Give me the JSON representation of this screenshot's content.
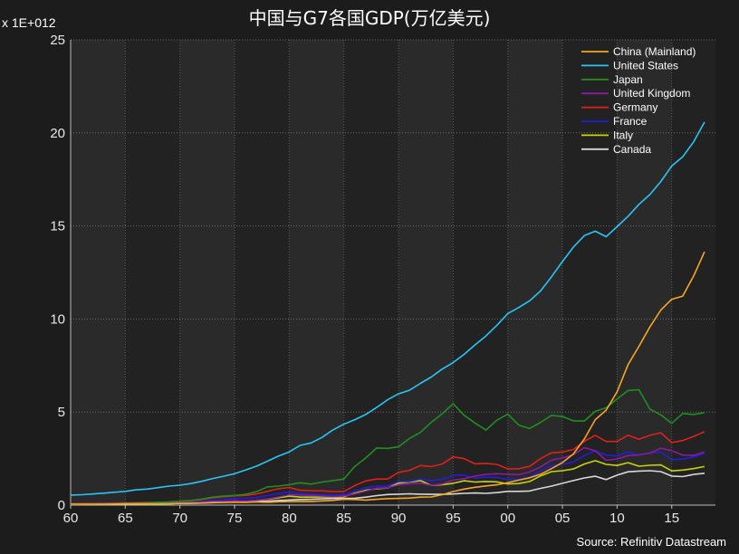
{
  "chart_data": {
    "type": "line",
    "title": "中国与G7各国GDP(万亿美元)",
    "unit_label": "x 1E+012",
    "source": "Source: Refinitiv Datastream",
    "xlabel": "",
    "ylabel": "",
    "xlim": [
      1960,
      2019
    ],
    "ylim": [
      0,
      25
    ],
    "yticks": [
      0,
      5,
      10,
      15,
      20,
      25
    ],
    "xticks": [
      1960,
      1965,
      1970,
      1975,
      1980,
      1985,
      1990,
      1995,
      2000,
      2005,
      2010,
      2015
    ],
    "xtick_labels": [
      "60",
      "65",
      "70",
      "75",
      "80",
      "85",
      "90",
      "95",
      "00",
      "05",
      "10",
      "15"
    ],
    "grid": true,
    "legend_position": "top-right",
    "x": [
      1960,
      1961,
      1962,
      1963,
      1964,
      1965,
      1966,
      1967,
      1968,
      1969,
      1970,
      1971,
      1972,
      1973,
      1974,
      1975,
      1976,
      1977,
      1978,
      1979,
      1980,
      1981,
      1982,
      1983,
      1984,
      1985,
      1986,
      1987,
      1988,
      1989,
      1990,
      1991,
      1992,
      1993,
      1994,
      1995,
      1996,
      1997,
      1998,
      1999,
      2000,
      2001,
      2002,
      2003,
      2004,
      2005,
      2006,
      2007,
      2008,
      2009,
      2010,
      2011,
      2012,
      2013,
      2014,
      2015,
      2016,
      2017,
      2018
    ],
    "series": [
      {
        "name": "China (Mainland)",
        "color": "#f5a623",
        "values": [
          0.06,
          0.05,
          0.05,
          0.05,
          0.06,
          0.07,
          0.08,
          0.07,
          0.07,
          0.08,
          0.09,
          0.1,
          0.11,
          0.14,
          0.14,
          0.16,
          0.15,
          0.17,
          0.15,
          0.18,
          0.19,
          0.2,
          0.2,
          0.23,
          0.26,
          0.31,
          0.3,
          0.27,
          0.31,
          0.35,
          0.36,
          0.38,
          0.43,
          0.44,
          0.56,
          0.73,
          0.86,
          0.96,
          1.03,
          1.09,
          1.21,
          1.34,
          1.47,
          1.66,
          1.96,
          2.29,
          2.75,
          3.55,
          4.59,
          5.1,
          6.09,
          7.55,
          8.53,
          9.57,
          10.48,
          11.06,
          11.23,
          12.31,
          13.61
        ]
      },
      {
        "name": "United States",
        "color": "#29c5f6",
        "values": [
          0.54,
          0.56,
          0.6,
          0.64,
          0.69,
          0.74,
          0.82,
          0.86,
          0.94,
          1.02,
          1.07,
          1.16,
          1.28,
          1.43,
          1.55,
          1.69,
          1.88,
          2.09,
          2.36,
          2.63,
          2.86,
          3.21,
          3.34,
          3.64,
          4.04,
          4.35,
          4.59,
          4.87,
          5.25,
          5.66,
          5.98,
          6.17,
          6.54,
          6.88,
          7.31,
          7.66,
          8.1,
          8.61,
          9.09,
          9.66,
          10.29,
          10.62,
          10.98,
          11.51,
          12.27,
          13.09,
          13.86,
          14.48,
          14.72,
          14.42,
          14.96,
          15.52,
          16.16,
          16.69,
          17.39,
          18.22,
          18.71,
          19.52,
          20.58
        ]
      },
      {
        "name": "Japan",
        "color": "#1f8f1f",
        "values": [
          0.04,
          0.05,
          0.06,
          0.07,
          0.08,
          0.09,
          0.1,
          0.12,
          0.15,
          0.17,
          0.21,
          0.24,
          0.32,
          0.43,
          0.48,
          0.52,
          0.58,
          0.72,
          0.98,
          1.02,
          1.1,
          1.2,
          1.13,
          1.24,
          1.32,
          1.4,
          2.08,
          2.53,
          3.07,
          3.05,
          3.13,
          3.58,
          3.91,
          4.45,
          4.91,
          5.45,
          4.83,
          4.41,
          4.03,
          4.56,
          4.89,
          4.3,
          4.12,
          4.45,
          4.82,
          4.76,
          4.53,
          4.52,
          5.04,
          5.23,
          5.7,
          6.16,
          6.2,
          5.16,
          4.85,
          4.39,
          4.92,
          4.87,
          4.97
        ]
      },
      {
        "name": "United Kingdom",
        "color": "#8a1aa0",
        "values": [
          0.07,
          0.08,
          0.08,
          0.09,
          0.09,
          0.1,
          0.11,
          0.11,
          0.11,
          0.12,
          0.13,
          0.15,
          0.17,
          0.19,
          0.21,
          0.24,
          0.23,
          0.26,
          0.33,
          0.44,
          0.56,
          0.54,
          0.52,
          0.49,
          0.46,
          0.49,
          0.6,
          0.75,
          0.91,
          0.93,
          1.09,
          1.14,
          1.18,
          1.06,
          1.14,
          1.34,
          1.42,
          1.56,
          1.65,
          1.69,
          1.66,
          1.64,
          1.78,
          2.05,
          2.42,
          2.54,
          2.71,
          3.09,
          2.92,
          2.41,
          2.48,
          2.66,
          2.7,
          2.79,
          3.06,
          2.93,
          2.69,
          2.67,
          2.86
        ]
      },
      {
        "name": "Germany",
        "color": "#e0201b",
        "values": [
          0.08,
          0.09,
          0.09,
          0.1,
          0.11,
          0.12,
          0.13,
          0.14,
          0.15,
          0.17,
          0.21,
          0.25,
          0.3,
          0.4,
          0.45,
          0.5,
          0.52,
          0.6,
          0.74,
          0.88,
          0.95,
          0.8,
          0.78,
          0.77,
          0.73,
          0.73,
          1.05,
          1.3,
          1.4,
          1.4,
          1.76,
          1.87,
          2.13,
          2.07,
          2.21,
          2.59,
          2.5,
          2.22,
          2.24,
          2.19,
          1.95,
          1.95,
          2.08,
          2.5,
          2.81,
          2.85,
          2.99,
          3.43,
          3.75,
          3.42,
          3.42,
          3.76,
          3.54,
          3.75,
          3.89,
          3.36,
          3.47,
          3.69,
          3.95
        ]
      },
      {
        "name": "France",
        "color": "#2020d8",
        "values": [
          0.06,
          0.07,
          0.08,
          0.08,
          0.09,
          0.1,
          0.11,
          0.12,
          0.13,
          0.14,
          0.15,
          0.16,
          0.2,
          0.26,
          0.28,
          0.36,
          0.37,
          0.41,
          0.51,
          0.62,
          0.7,
          0.62,
          0.58,
          0.56,
          0.53,
          0.55,
          0.77,
          0.93,
          1.02,
          1.03,
          1.27,
          1.27,
          1.4,
          1.32,
          1.39,
          1.6,
          1.61,
          1.46,
          1.51,
          1.49,
          1.37,
          1.38,
          1.5,
          1.84,
          2.12,
          2.2,
          2.32,
          2.66,
          2.92,
          2.69,
          2.64,
          2.86,
          2.68,
          2.81,
          2.85,
          2.44,
          2.47,
          2.59,
          2.78
        ]
      },
      {
        "name": "Italy",
        "color": "#c8d400",
        "values": [
          0.04,
          0.05,
          0.05,
          0.06,
          0.07,
          0.07,
          0.08,
          0.08,
          0.09,
          0.1,
          0.11,
          0.12,
          0.14,
          0.16,
          0.18,
          0.23,
          0.22,
          0.26,
          0.32,
          0.39,
          0.48,
          0.43,
          0.43,
          0.44,
          0.44,
          0.45,
          0.64,
          0.8,
          0.88,
          0.92,
          1.18,
          1.24,
          1.32,
          1.06,
          1.1,
          1.17,
          1.31,
          1.24,
          1.27,
          1.25,
          1.14,
          1.16,
          1.27,
          1.57,
          1.8,
          1.85,
          1.94,
          2.21,
          2.39,
          2.19,
          2.13,
          2.28,
          2.09,
          2.14,
          2.16,
          1.84,
          1.88,
          1.96,
          2.07
        ]
      },
      {
        "name": "Canada",
        "color": "#d8d8d8",
        "values": [
          0.04,
          0.04,
          0.04,
          0.05,
          0.05,
          0.06,
          0.06,
          0.07,
          0.07,
          0.08,
          0.09,
          0.1,
          0.11,
          0.13,
          0.16,
          0.17,
          0.21,
          0.21,
          0.22,
          0.25,
          0.27,
          0.3,
          0.31,
          0.34,
          0.36,
          0.36,
          0.37,
          0.43,
          0.51,
          0.57,
          0.59,
          0.61,
          0.59,
          0.58,
          0.58,
          0.6,
          0.63,
          0.65,
          0.63,
          0.67,
          0.74,
          0.74,
          0.76,
          0.9,
          1.02,
          1.17,
          1.32,
          1.46,
          1.55,
          1.37,
          1.61,
          1.79,
          1.83,
          1.85,
          1.8,
          1.56,
          1.53,
          1.65,
          1.71
        ]
      }
    ]
  }
}
